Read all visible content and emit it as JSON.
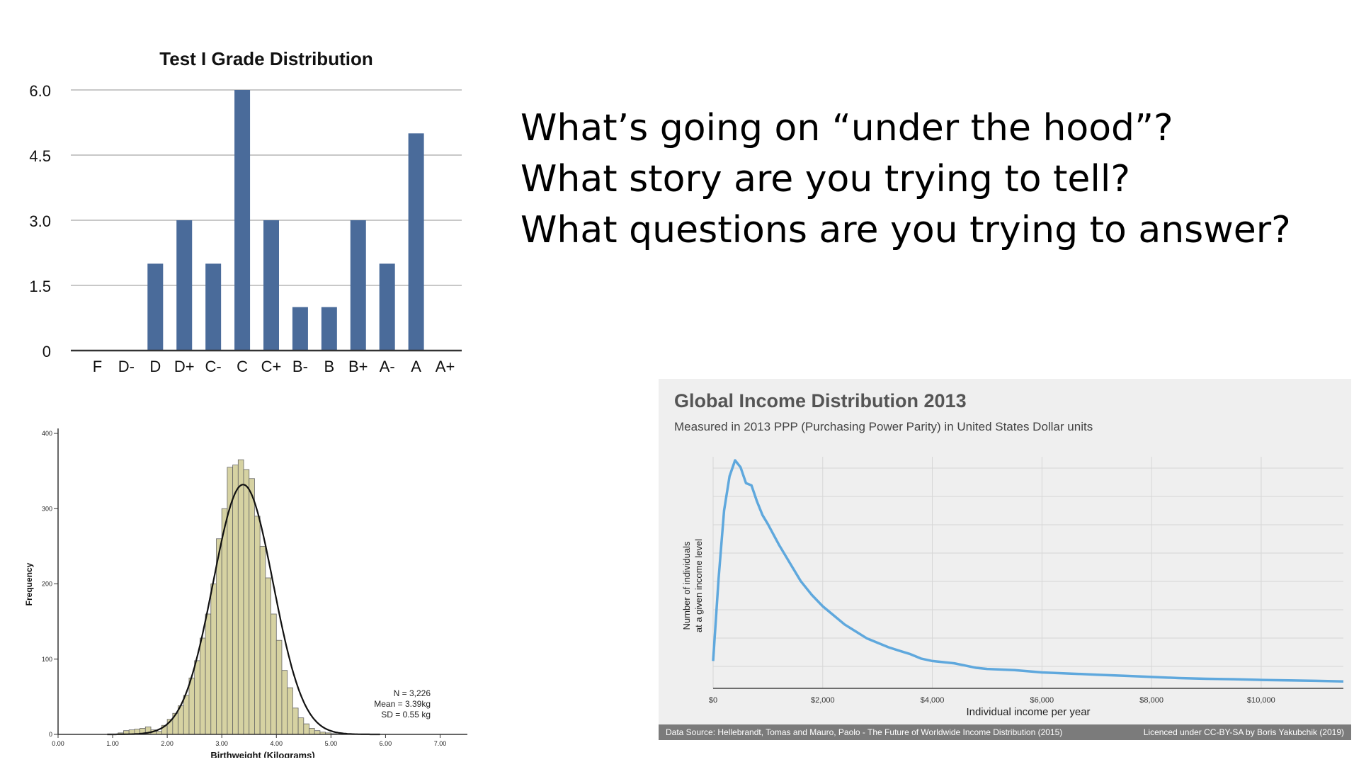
{
  "questions": [
    "What’s going on “under the hood”?",
    "What story are you trying to tell?",
    "What questions are you trying to answer?"
  ],
  "chart_data": [
    {
      "type": "bar",
      "title": "Test I Grade Distribution",
      "categories": [
        "F",
        "D-",
        "D",
        "D+",
        "C-",
        "C",
        "C+",
        "B-",
        "B",
        "B+",
        "A-",
        "A",
        "A+"
      ],
      "values": [
        0,
        0,
        2,
        3,
        2,
        6,
        3,
        1,
        1,
        3,
        2,
        5,
        0
      ],
      "ylim": [
        0,
        6
      ],
      "yticks": [
        "0",
        "1.5",
        "3.0",
        "4.5",
        "6.0"
      ],
      "grid": true,
      "bar_color": "#4a6b9a"
    },
    {
      "type": "bar",
      "subtype": "histogram",
      "xlabel": "Birthweight (Kilograms)",
      "ylabel": "Frequency",
      "xlim": [
        0,
        7.5
      ],
      "ylim": [
        0,
        400
      ],
      "xticks": [
        "0.00",
        "1.00",
        "2.00",
        "3.00",
        "4.00",
        "5.00",
        "6.00",
        "7.00"
      ],
      "yticks": [
        "0",
        "100",
        "200",
        "300",
        "400"
      ],
      "bin_width": 0.1,
      "bins_start": 1.1,
      "values": [
        2,
        5,
        6,
        7,
        8,
        10,
        6,
        4,
        12,
        20,
        28,
        38,
        52,
        75,
        98,
        128,
        160,
        200,
        260,
        300,
        355,
        358,
        365,
        352,
        340,
        290,
        250,
        208,
        160,
        125,
        85,
        62,
        35,
        22,
        14,
        8,
        5,
        3,
        2,
        1
      ],
      "annotations": [
        "N = 3,226",
        "Mean = 3.39kg",
        "SD = 0.55 kg"
      ],
      "bar_color": "#d6d2a2",
      "curve_mean": 3.39,
      "curve_sd": 0.55,
      "curve_peak": 332
    },
    {
      "type": "line",
      "title": "Global Income Distribution 2013",
      "subtitle": "Measured in 2013 PPP (Purchasing Power Parity) in United States Dollar units",
      "xlabel": "Individual income per year",
      "ylabel": [
        "Number of individuals",
        "at a given income level"
      ],
      "xlim": [
        0,
        11500
      ],
      "xticks": [
        "$0",
        "$2,000",
        "$4,000",
        "$6,000",
        "$8,000",
        "$10,000"
      ],
      "line_color": "#5fa8dd",
      "series": [
        {
          "x": [
            0,
            100,
            200,
            300,
            400,
            500,
            600,
            700,
            800,
            900,
            1000,
            1200,
            1400,
            1600,
            1800,
            2000,
            2200,
            2400,
            2600,
            2800,
            3000,
            3200,
            3400,
            3600,
            3800,
            4000,
            4200,
            4400,
            4600,
            4800,
            5000,
            5500,
            6000,
            6500,
            7000,
            7500,
            8000,
            8500,
            9000,
            9500,
            10000,
            10500,
            11000,
            11500
          ],
          "y": [
            0.12,
            0.48,
            0.78,
            0.93,
            1.0,
            0.97,
            0.9,
            0.89,
            0.82,
            0.76,
            0.72,
            0.63,
            0.55,
            0.47,
            0.41,
            0.36,
            0.32,
            0.28,
            0.25,
            0.22,
            0.2,
            0.18,
            0.165,
            0.15,
            0.13,
            0.12,
            0.115,
            0.11,
            0.1,
            0.09,
            0.085,
            0.08,
            0.07,
            0.065,
            0.06,
            0.055,
            0.05,
            0.045,
            0.042,
            0.04,
            0.037,
            0.035,
            0.033,
            0.03
          ]
        }
      ],
      "footer_source": "Data Source: Hellebrandt, Tomas and Mauro, Paolo - The Future of Worldwide Income Distribution (2015)",
      "footer_license": "Licenced under CC-BY-SA by Boris Yakubchik (2019)"
    }
  ]
}
